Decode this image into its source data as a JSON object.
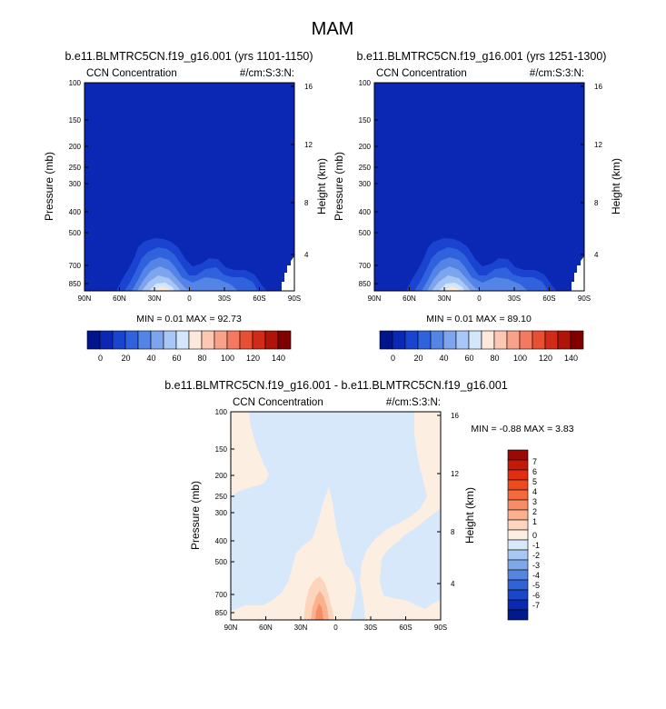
{
  "figure_title": "MAM",
  "chart_data": [
    {
      "id": "left",
      "type": "contour",
      "title": "b.e11.BLMTRC5CN.f19_g16.001 (yrs 1101-1150)",
      "left_string": "CCN Concentration",
      "right_string": "#/cm:S:3:N:",
      "xlabel": "",
      "ylabel": "Pressure (mb)",
      "right_ylabel": "Height (km)",
      "x_ticks": [
        "90N",
        "60N",
        "30N",
        "0",
        "30S",
        "60S",
        "90S"
      ],
      "y_ticks": [
        "100",
        "150",
        "200",
        "250",
        "300",
        "400",
        "500",
        "700",
        "850"
      ],
      "right_ticks": [
        "4",
        "8",
        "12",
        "16"
      ],
      "xlim": [
        "90N",
        "90S"
      ],
      "ylim_mb": [
        1000,
        100
      ],
      "stats": "MIN =  0.01  MAX =  92.73",
      "min": 0.01,
      "max": 92.73,
      "colorbar": {
        "orientation": "horizontal",
        "labels": [
          "0",
          "20",
          "40",
          "60",
          "80",
          "100",
          "120",
          "140"
        ],
        "colors": [
          "#00148c",
          "#0a28b4",
          "#1a44d0",
          "#2f62dc",
          "#5484e6",
          "#7ea4ee",
          "#a8c6f6",
          "#d2e6fc",
          "#fde8dc",
          "#fbc8b4",
          "#f8a28a",
          "#f37a60",
          "#e85034",
          "#d22a18",
          "#ae1408",
          "#800000"
        ]
      }
    },
    {
      "id": "right",
      "type": "contour",
      "title": "b.e11.BLMTRC5CN.f19_g16.001 (yrs 1251-1300)",
      "left_string": "CCN Concentration",
      "right_string": "#/cm:S:3:N:",
      "xlabel": "",
      "ylabel": "Pressure (mb)",
      "right_ylabel": "Height (km)",
      "x_ticks": [
        "90N",
        "60N",
        "30N",
        "0",
        "30S",
        "60S",
        "90S"
      ],
      "y_ticks": [
        "100",
        "150",
        "200",
        "250",
        "300",
        "400",
        "500",
        "700",
        "850"
      ],
      "right_ticks": [
        "4",
        "8",
        "12",
        "16"
      ],
      "xlim": [
        "90N",
        "90S"
      ],
      "ylim_mb": [
        1000,
        100
      ],
      "stats": "MIN =  0.01  MAX =  89.10",
      "min": 0.01,
      "max": 89.1,
      "colorbar": {
        "orientation": "horizontal",
        "labels": [
          "0",
          "20",
          "40",
          "60",
          "80",
          "100",
          "120",
          "140"
        ],
        "colors": [
          "#00148c",
          "#0a28b4",
          "#1a44d0",
          "#2f62dc",
          "#5484e6",
          "#7ea4ee",
          "#a8c6f6",
          "#d2e6fc",
          "#fde8dc",
          "#fbc8b4",
          "#f8a28a",
          "#f37a60",
          "#e85034",
          "#d22a18",
          "#ae1408",
          "#800000"
        ]
      }
    },
    {
      "id": "diff",
      "type": "contour",
      "title": "b.e11.BLMTRC5CN.f19_g16.001 - b.e11.BLMTRC5CN.f19_g16.001",
      "left_string": "CCN Concentration",
      "right_string": "#/cm:S:3:N:",
      "xlabel": "",
      "ylabel": "Pressure (mb)",
      "right_ylabel": "Height (km)",
      "x_ticks": [
        "90N",
        "60N",
        "30N",
        "0",
        "30S",
        "60S",
        "90S"
      ],
      "y_ticks": [
        "100",
        "150",
        "200",
        "250",
        "300",
        "400",
        "500",
        "700",
        "850"
      ],
      "right_ticks": [
        "4",
        "8",
        "12",
        "16"
      ],
      "xlim": [
        "90N",
        "90S"
      ],
      "ylim_mb": [
        1000,
        100
      ],
      "stats": "MIN =  -0.88  MAX =   3.83",
      "min": -0.88,
      "max": 3.83,
      "colorbar": {
        "orientation": "vertical",
        "labels": [
          "7",
          "6",
          "5",
          "4",
          "3",
          "2",
          "1",
          "0",
          "-1",
          "-2",
          "-3",
          "-4",
          "-5",
          "-6",
          "-7"
        ],
        "colors": [
          "#9a0a04",
          "#c41808",
          "#e02e10",
          "#ee4a20",
          "#f46a3e",
          "#f88c64",
          "#fbb090",
          "#fdd4bc",
          "#fdeee2",
          "#d6e8fa",
          "#a8c8f2",
          "#7ea8ea",
          "#5686e0",
          "#3064d6",
          "#1a46c8",
          "#0a28b0",
          "#001a8c"
        ]
      }
    }
  ]
}
